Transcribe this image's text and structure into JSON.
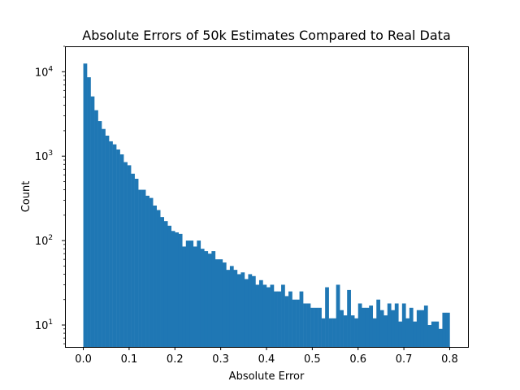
{
  "chart_data": {
    "type": "bar",
    "title": "Absolute Errors of 50k Estimates Compared to Real Data",
    "xlabel": "Absolute Error",
    "ylabel": "Count",
    "xlim": [
      -0.04,
      0.84
    ],
    "ylim": [
      5.5,
      20000
    ],
    "yscale": "log",
    "grid": false,
    "color": "#1f77b4",
    "bin_width": 0.008,
    "bin_start": 0.0,
    "x_ticks": [
      "0.0",
      "0.1",
      "0.2",
      "0.3",
      "0.4",
      "0.5",
      "0.6",
      "0.7",
      "0.8"
    ],
    "x_tick_values": [
      0.0,
      0.1,
      0.2,
      0.3,
      0.4,
      0.5,
      0.6,
      0.7,
      0.8
    ],
    "y_ticks": [
      {
        "base": "10",
        "exp": "1",
        "value": 10
      },
      {
        "base": "10",
        "exp": "2",
        "value": 100
      },
      {
        "base": "10",
        "exp": "3",
        "value": 1000
      },
      {
        "base": "10",
        "exp": "4",
        "value": 10000
      }
    ],
    "values": [
      12500,
      8600,
      5100,
      3500,
      2600,
      2100,
      1750,
      1500,
      1380,
      1200,
      1050,
      850,
      780,
      620,
      540,
      400,
      400,
      340,
      320,
      260,
      230,
      190,
      170,
      150,
      130,
      125,
      120,
      85,
      100,
      100,
      85,
      100,
      80,
      75,
      70,
      75,
      60,
      60,
      55,
      45,
      50,
      45,
      40,
      42,
      35,
      40,
      38,
      30,
      34,
      30,
      28,
      30,
      25,
      25,
      30,
      22,
      25,
      20,
      20,
      25,
      18,
      18,
      16,
      16,
      16,
      12,
      28,
      12,
      12,
      30,
      15,
      13,
      26,
      13,
      12,
      18,
      16,
      16,
      17,
      12,
      20,
      15,
      13,
      18,
      15,
      18,
      11,
      18,
      12,
      16,
      11,
      15,
      15,
      17,
      10,
      11,
      11,
      9,
      14,
      14
    ]
  }
}
